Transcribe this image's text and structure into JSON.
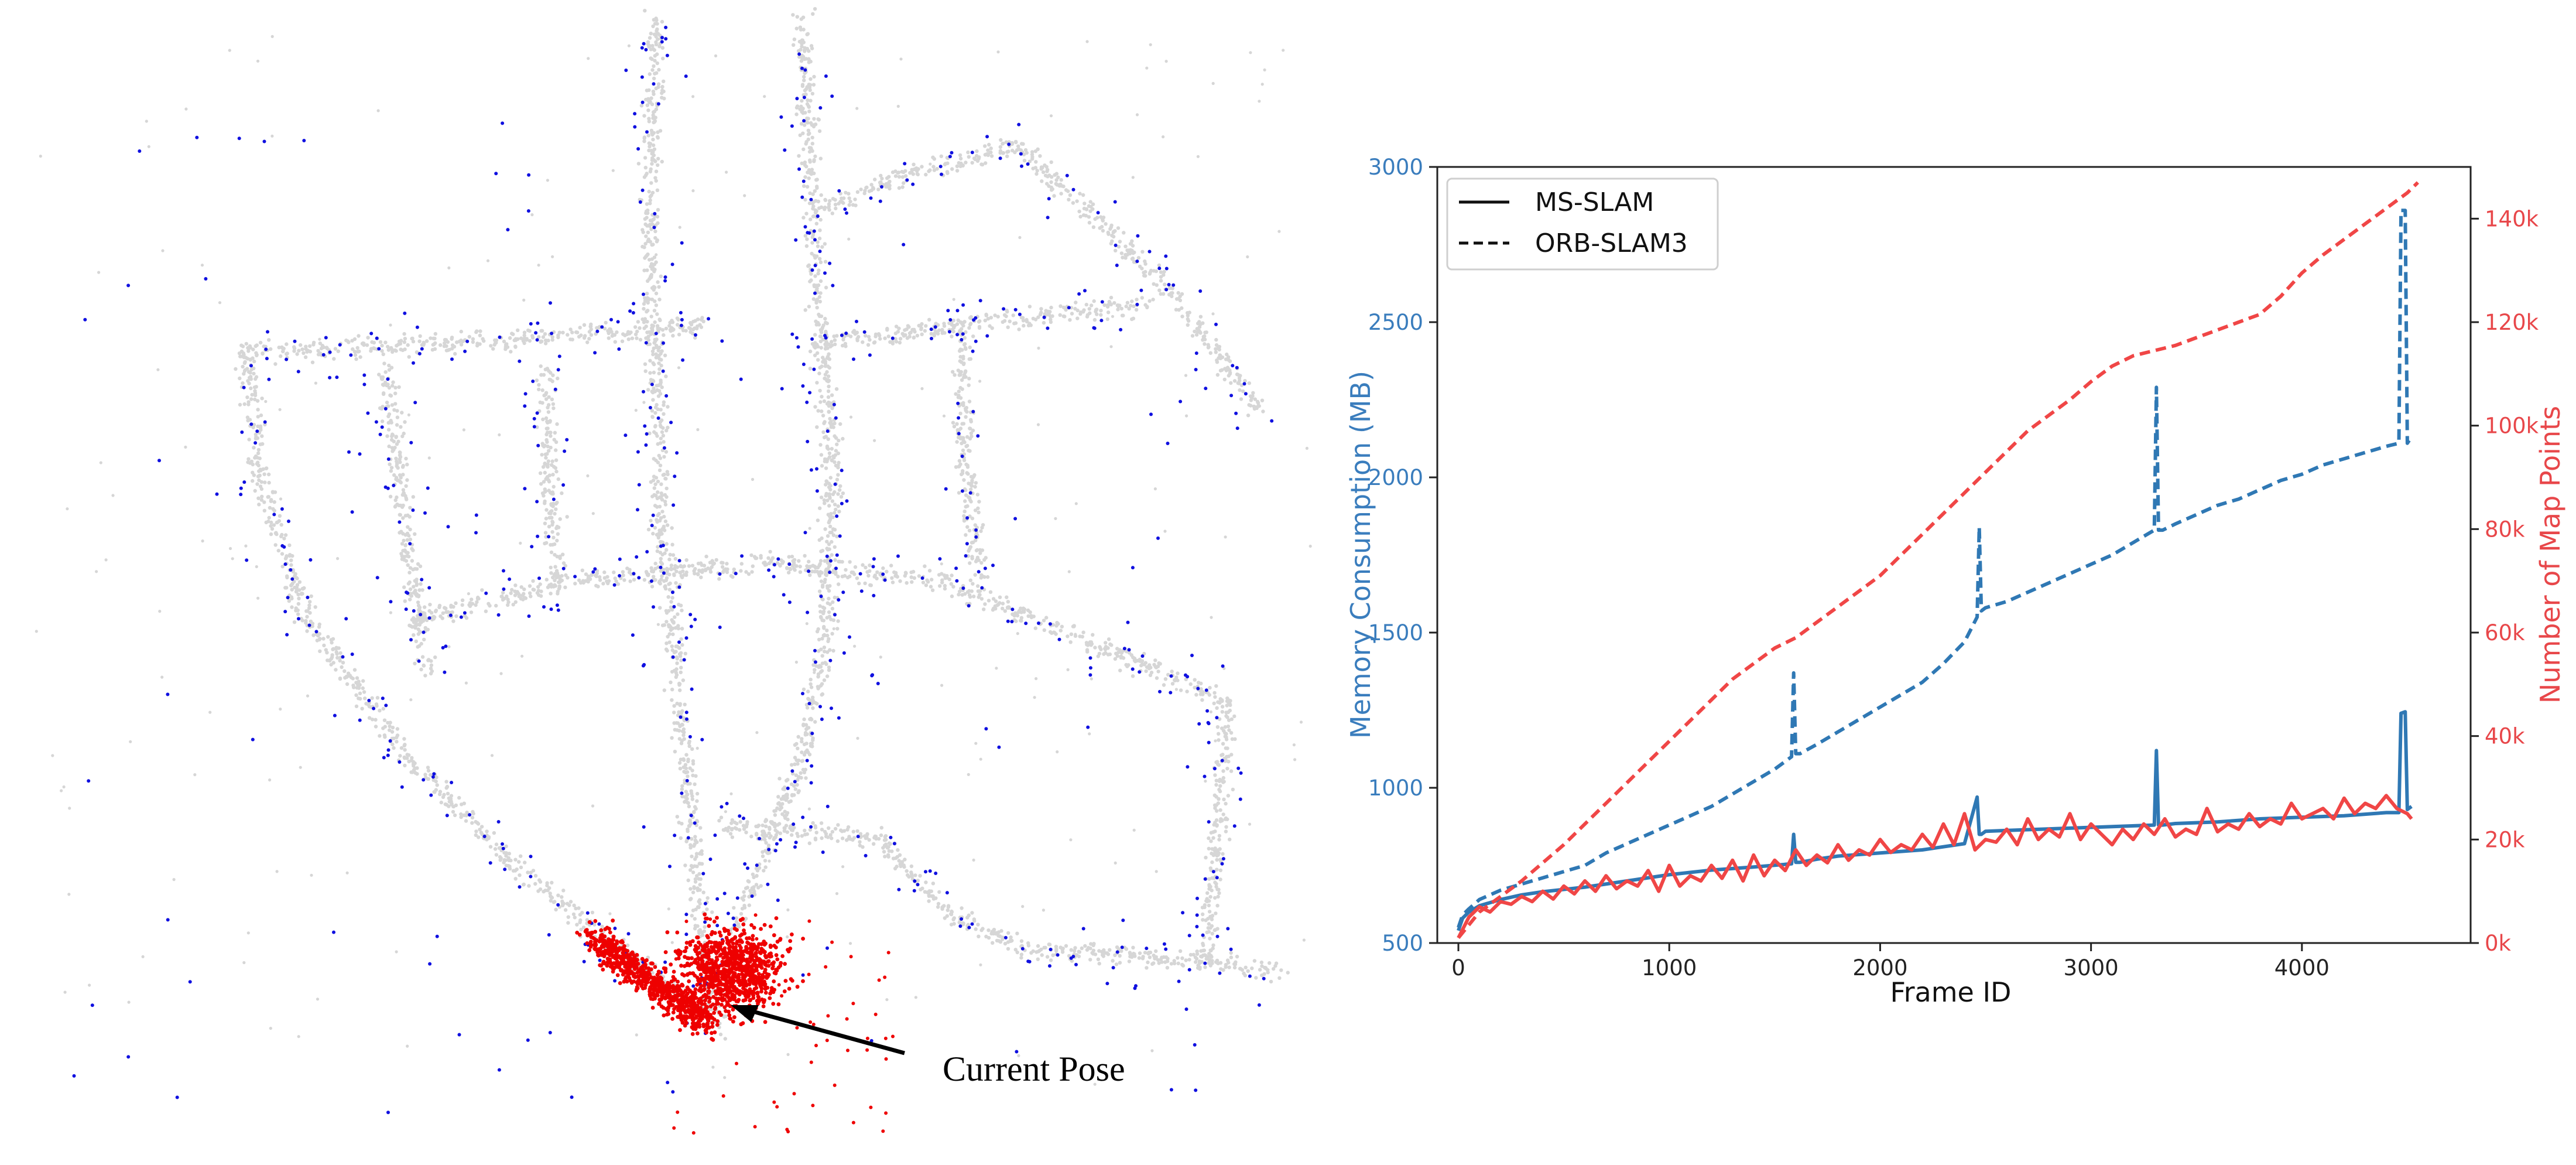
{
  "colors": {
    "blue": "#2f78b4",
    "red": "#f04646",
    "map_gray": "#d6d6d6",
    "map_blue": "#1010e0",
    "map_red": "#ee0000",
    "left_axis_text": "#3a7dbd",
    "right_axis_text": "#e8474a"
  },
  "map": {
    "annotation": "Current Pose",
    "arrow": "arrow-icon"
  },
  "chart_data": {
    "type": "line",
    "xlabel": "Frame ID",
    "ylabel_left": "Memory Consumption (MB)",
    "ylabel_right": "Number of Map Points",
    "xlim": [
      -100,
      4800
    ],
    "ylim_left": [
      500,
      3000
    ],
    "ylim_right": [
      0,
      150000
    ],
    "x_ticks": [
      "0",
      "1000",
      "2000",
      "3000",
      "4000"
    ],
    "y_left_ticks": [
      "500",
      "1000",
      "1500",
      "2000",
      "2500",
      "3000"
    ],
    "y_right_ticks": [
      "0k",
      "20k",
      "40k",
      "60k",
      "80k",
      "100k",
      "120k",
      "140k"
    ],
    "grid": false,
    "legend_position": "top-left",
    "legend": [
      {
        "label": "MS-SLAM",
        "style": "solid"
      },
      {
        "label": "ORB-SLAM3",
        "style": "dashed"
      }
    ],
    "series": [
      {
        "axis": "left",
        "color": "blue",
        "style": "solid",
        "x": [
          0,
          20,
          50,
          100,
          200,
          300,
          400,
          600,
          800,
          1000,
          1200,
          1400,
          1580,
          1590,
          1600,
          1620,
          1700,
          1800,
          2000,
          2200,
          2400,
          2460,
          2470,
          2480,
          2500,
          2700,
          2900,
          3100,
          3300,
          3310,
          3320,
          3340,
          3400,
          3600,
          3800,
          4000,
          4200,
          4400,
          4460,
          4470,
          4490,
          4500,
          4520
        ],
        "y": [
          540,
          580,
          600,
          620,
          640,
          655,
          665,
          680,
          700,
          720,
          735,
          745,
          755,
          850,
          760,
          760,
          770,
          780,
          790,
          800,
          820,
          970,
          850,
          850,
          860,
          865,
          870,
          875,
          880,
          1120,
          880,
          880,
          885,
          890,
          900,
          905,
          910,
          920,
          920,
          1240,
          1245,
          930,
          940
        ]
      },
      {
        "axis": "left",
        "color": "blue",
        "style": "dashed",
        "x": [
          0,
          20,
          50,
          100,
          200,
          300,
          400,
          500,
          600,
          700,
          800,
          900,
          1000,
          1100,
          1200,
          1300,
          1400,
          1500,
          1580,
          1590,
          1600,
          1620,
          1700,
          1800,
          1900,
          2000,
          2100,
          2200,
          2300,
          2400,
          2460,
          2470,
          2480,
          2500,
          2600,
          2700,
          2800,
          2900,
          3000,
          3100,
          3200,
          3300,
          3310,
          3320,
          3340,
          3400,
          3500,
          3600,
          3700,
          3800,
          3900,
          4000,
          4100,
          4200,
          4300,
          4400,
          4460,
          4470,
          4490,
          4500,
          4520
        ],
        "y": [
          550,
          590,
          610,
          640,
          670,
          690,
          710,
          730,
          750,
          790,
          820,
          850,
          880,
          910,
          940,
          980,
          1020,
          1060,
          1100,
          1370,
          1110,
          1110,
          1140,
          1180,
          1220,
          1260,
          1300,
          1340,
          1400,
          1470,
          1550,
          1840,
          1570,
          1580,
          1600,
          1630,
          1660,
          1690,
          1720,
          1750,
          1790,
          1830,
          2290,
          1830,
          1830,
          1850,
          1880,
          1910,
          1930,
          1960,
          1990,
          2010,
          2040,
          2060,
          2080,
          2100,
          2110,
          2860,
          2860,
          2110,
          2130
        ]
      },
      {
        "axis": "right",
        "color": "red",
        "style": "dashed",
        "x": [
          0,
          100,
          200,
          300,
          400,
          500,
          600,
          700,
          800,
          900,
          1000,
          1100,
          1200,
          1300,
          1400,
          1500,
          1600,
          1700,
          1800,
          1900,
          2000,
          2100,
          2200,
          2300,
          2400,
          2500,
          2600,
          2700,
          2800,
          2900,
          3000,
          3100,
          3200,
          3300,
          3400,
          3500,
          3600,
          3700,
          3800,
          3900,
          4000,
          4100,
          4200,
          4300,
          4400,
          4500,
          4550
        ],
        "y": [
          1000,
          6000,
          9000,
          12000,
          15500,
          19000,
          23000,
          27000,
          31000,
          35000,
          39000,
          43000,
          47000,
          51000,
          54000,
          57000,
          59000,
          62000,
          65000,
          68000,
          71000,
          75000,
          79000,
          83000,
          87000,
          91000,
          95000,
          99000,
          102000,
          105000,
          108500,
          111500,
          113500,
          114500,
          115500,
          117000,
          118500,
          120000,
          121500,
          125000,
          129500,
          133000,
          136000,
          139000,
          142000,
          145000,
          147000
        ]
      },
      {
        "axis": "right",
        "color": "red",
        "style": "solid",
        "x": [
          0,
          50,
          100,
          150,
          200,
          250,
          300,
          350,
          400,
          450,
          500,
          550,
          600,
          650,
          700,
          750,
          800,
          850,
          900,
          950,
          1000,
          1050,
          1100,
          1150,
          1200,
          1250,
          1300,
          1350,
          1400,
          1450,
          1500,
          1550,
          1600,
          1650,
          1700,
          1750,
          1800,
          1850,
          1900,
          1950,
          2000,
          2050,
          2100,
          2150,
          2200,
          2250,
          2300,
          2350,
          2400,
          2450,
          2500,
          2550,
          2600,
          2650,
          2700,
          2750,
          2800,
          2850,
          2900,
          2950,
          3000,
          3050,
          3100,
          3150,
          3200,
          3250,
          3300,
          3350,
          3400,
          3450,
          3500,
          3550,
          3600,
          3650,
          3700,
          3750,
          3800,
          3850,
          3900,
          3950,
          4000,
          4050,
          4100,
          4150,
          4200,
          4250,
          4300,
          4350,
          4400,
          4450,
          4500,
          4520
        ],
        "y": [
          1000,
          5000,
          7000,
          6000,
          8000,
          7500,
          9000,
          8000,
          10000,
          8500,
          11000,
          9500,
          12000,
          10000,
          13000,
          10500,
          12000,
          11000,
          14000,
          10000,
          15000,
          11000,
          13000,
          12000,
          15000,
          12500,
          16000,
          12000,
          17000,
          13000,
          16000,
          14000,
          18000,
          15000,
          17000,
          15500,
          19000,
          16000,
          18000,
          17000,
          20000,
          17500,
          19000,
          18000,
          21000,
          18500,
          23000,
          19000,
          25000,
          18000,
          20000,
          19500,
          22000,
          19000,
          24000,
          20000,
          22000,
          20500,
          25000,
          20000,
          23000,
          21000,
          19000,
          22000,
          20000,
          23000,
          21000,
          24000,
          20500,
          22000,
          21000,
          26000,
          21500,
          23000,
          22000,
          25000,
          22500,
          24000,
          23000,
          27000,
          24000,
          25000,
          26000,
          24000,
          28000,
          25000,
          27000,
          26000,
          28500,
          26000,
          25000,
          24000
        ]
      }
    ]
  }
}
